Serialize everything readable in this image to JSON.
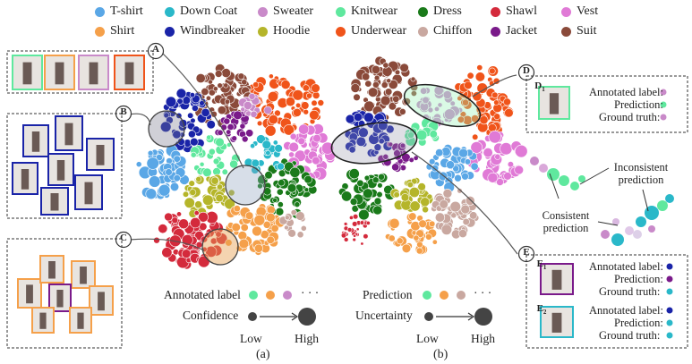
{
  "legend": {
    "items": [
      {
        "label": "T-shirt",
        "color": "#5aa7e6"
      },
      {
        "label": "Down Coat",
        "color": "#2ab8c9"
      },
      {
        "label": "Sweater",
        "color": "#c98ac9"
      },
      {
        "label": "Knitwear",
        "color": "#5fe89e"
      },
      {
        "label": "Dress",
        "color": "#1a7a1a"
      },
      {
        "label": "Shawl",
        "color": "#d42a3c"
      },
      {
        "label": "Vest",
        "color": "#e07ad6"
      },
      {
        "label": "Shirt",
        "color": "#f5a04a"
      },
      {
        "label": "Windbreaker",
        "color": "#1a24a8"
      },
      {
        "label": "Hoodie",
        "color": "#b5b52a"
      },
      {
        "label": "Underwear",
        "color": "#f0541a"
      },
      {
        "label": "Chiffon",
        "color": "#c9a8a0"
      },
      {
        "label": "Jacket",
        "color": "#7a1a8a"
      },
      {
        "label": "Suit",
        "color": "#8a4a3a"
      }
    ]
  },
  "callouts": {
    "A": "A",
    "B": "B",
    "C": "C",
    "D": "D",
    "E": "E",
    "D1": "D",
    "D1_sub": "1",
    "E1": "E",
    "E1_sub": "1",
    "E2": "E",
    "E2_sub": "2"
  },
  "panel_a": {
    "caption": "(a)",
    "annotated_label": "Annotated label",
    "confidence": "Confidence",
    "low": "Low",
    "high": "High",
    "ellipsis": "· · ·"
  },
  "panel_b": {
    "caption": "(b)",
    "prediction": "Prediction",
    "uncertainty": "Uncertainty",
    "low": "Low",
    "high": "High",
    "ellipsis": "· · ·"
  },
  "info_d": {
    "annotated": "Annotated label:",
    "prediction": "Prediction:",
    "ground_truth": "Ground truth:"
  },
  "info_e1": {
    "annotated": "Annotated label:",
    "prediction": "Prediction:",
    "ground_truth": "Ground truth:"
  },
  "info_e2": {
    "annotated": "Annotated label:",
    "prediction": "Prediction:",
    "ground_truth": "Ground truth:"
  },
  "annotations": {
    "inconsistent": [
      "Inconsistent",
      "prediction"
    ],
    "consistent": [
      "Consistent",
      "prediction"
    ]
  }
}
